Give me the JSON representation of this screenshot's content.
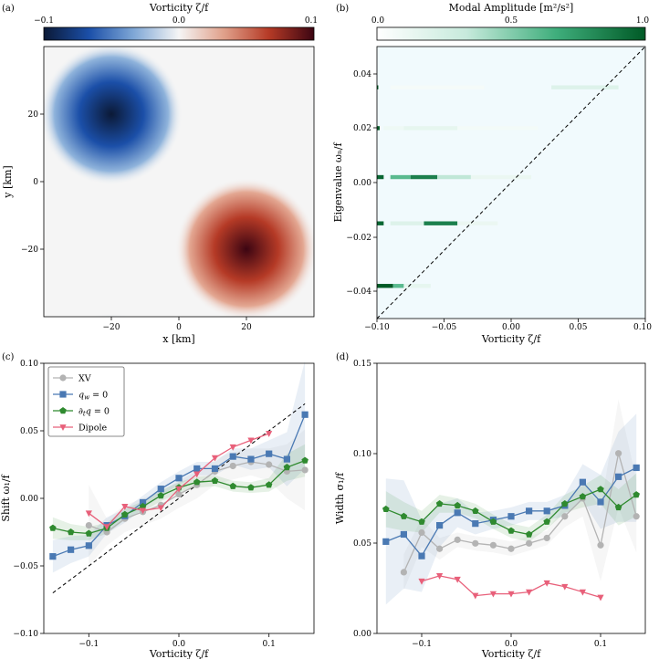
{
  "colors": {
    "xv": "#b3b3b3",
    "qw0": "#4a79b3",
    "dtq0": "#2f8a2f",
    "dipole": "#e8607a",
    "identity_line": "#000000",
    "vorticity_cmap": [
      "#0b1936",
      "#1b4fa8",
      "#7fa7d6",
      "#f5f5f5",
      "#e0a08a",
      "#b53a26",
      "#3c0512"
    ],
    "amplitude_cmap": [
      "#ffffff",
      "#c7eadc",
      "#3fae7c",
      "#005a26"
    ]
  },
  "panels": {
    "a": {
      "tag": "(a)",
      "colorbar_title": "Vorticity ζ/f",
      "colorbar_ticks": [
        "−0.1",
        "0.0",
        "0.1"
      ],
      "xlabel": "x [km]",
      "ylabel": "y [km]",
      "xticks": [
        "−20",
        "0",
        "20"
      ],
      "yticks": [
        "20",
        "0",
        "−20"
      ]
    },
    "b": {
      "tag": "(b)",
      "colorbar_title": "Modal Amplitude [m²/s²]",
      "colorbar_ticks": [
        "0.0",
        "0.5",
        "1.0"
      ],
      "xlabel": "Vorticity ζ/f",
      "ylabel": "Eigenvalue ωₙ/f",
      "xticks": [
        "−0.10",
        "−0.05",
        "0.00",
        "0.05",
        "0.10"
      ],
      "yticks": [
        "0.04",
        "0.02",
        "0.00",
        "−0.02",
        "−0.04"
      ]
    },
    "c": {
      "tag": "(c)",
      "xlabel": "Vorticity ζ/f",
      "ylabel": "Shift ω₁/f",
      "xticks": [
        "−0.1",
        "0.0",
        "0.1"
      ],
      "yticks": [
        "0.10",
        "0.05",
        "0.00",
        "−0.05",
        "−0.10"
      ]
    },
    "d": {
      "tag": "(d)",
      "xlabel": "Vorticity ζ/f",
      "ylabel": "Width σ₁/f",
      "xticks": [
        "−0.1",
        "0.0",
        "0.1"
      ],
      "yticks": [
        "0.15",
        "0.10",
        "0.05",
        "0.00"
      ]
    }
  },
  "chart_data": [
    {
      "panel": "a",
      "type": "heatmap",
      "field": "vorticity",
      "xlim": [
        -40,
        40
      ],
      "ylim": [
        -40,
        40
      ],
      "clim": [
        -0.1,
        0.1
      ],
      "centers": [
        {
          "x": -20,
          "y": 20,
          "value": -0.1
        },
        {
          "x": 20,
          "y": -20,
          "value": 0.1
        }
      ]
    },
    {
      "panel": "b",
      "type": "heatmap",
      "xlim": [
        -0.1,
        0.1
      ],
      "ylim": [
        -0.05,
        0.05
      ],
      "clim": [
        0,
        1
      ],
      "identity_line": true,
      "bands": [
        {
          "eigenvalue": 0.035,
          "segments": [
            [
              -0.1,
              -0.099,
              1.0
            ],
            [
              -0.09,
              -0.02,
              0.06
            ],
            [
              0.03,
              0.08,
              0.2
            ]
          ]
        },
        {
          "eigenvalue": 0.02,
          "segments": [
            [
              -0.1,
              -0.098,
              1.0
            ],
            [
              -0.095,
              -0.08,
              0.1
            ],
            [
              -0.08,
              -0.04,
              0.15
            ],
            [
              -0.04,
              0.02,
              0.07
            ]
          ]
        },
        {
          "eigenvalue": 0.002,
          "segments": [
            [
              -0.1,
              -0.095,
              0.95
            ],
            [
              -0.09,
              -0.075,
              0.6
            ],
            [
              -0.075,
              -0.055,
              0.85
            ],
            [
              -0.055,
              -0.03,
              0.35
            ],
            [
              -0.03,
              0.015,
              0.12
            ]
          ]
        },
        {
          "eigenvalue": -0.015,
          "segments": [
            [
              -0.1,
              -0.095,
              0.95
            ],
            [
              -0.09,
              -0.065,
              0.2
            ],
            [
              -0.065,
              -0.04,
              0.85
            ],
            [
              -0.04,
              -0.01,
              0.12
            ]
          ]
        },
        {
          "eigenvalue": -0.038,
          "segments": [
            [
              -0.1,
              -0.088,
              1.0
            ],
            [
              -0.088,
              -0.08,
              0.6
            ],
            [
              -0.08,
              -0.06,
              0.15
            ]
          ]
        }
      ]
    },
    {
      "panel": "c",
      "type": "line",
      "xlim": [
        -0.15,
        0.15
      ],
      "ylim": [
        -0.1,
        0.1
      ],
      "identity_line": {
        "x": [
          -0.14,
          0.14
        ],
        "y": [
          -0.07,
          0.07
        ]
      },
      "series": [
        {
          "name": "XV",
          "marker": "circle",
          "x": [
            -0.1,
            -0.08,
            -0.06,
            -0.04,
            -0.02,
            0.0,
            0.02,
            0.04,
            0.06,
            0.08,
            0.1,
            0.12,
            0.14
          ],
          "y": [
            -0.02,
            -0.025,
            -0.015,
            -0.01,
            -0.005,
            0.003,
            0.01,
            0.02,
            0.024,
            0.027,
            0.025,
            0.02,
            0.021
          ],
          "band": [
            0.03,
            0.01,
            0.01,
            0.01,
            0.01,
            0.01,
            0.01,
            0.01,
            0.01,
            0.01,
            0.012,
            0.02,
            0.03
          ]
        },
        {
          "name": "q_w = 0",
          "marker": "square",
          "x": [
            -0.14,
            -0.12,
            -0.1,
            -0.08,
            -0.06,
            -0.04,
            -0.02,
            0.0,
            0.02,
            0.04,
            0.06,
            0.08,
            0.1,
            0.12,
            0.14
          ],
          "y": [
            -0.043,
            -0.038,
            -0.035,
            -0.02,
            -0.013,
            -0.003,
            0.007,
            0.015,
            0.022,
            0.022,
            0.031,
            0.029,
            0.033,
            0.029,
            0.062
          ],
          "band": [
            0.012,
            0.01,
            0.008,
            0.006,
            0.005,
            0.005,
            0.005,
            0.005,
            0.005,
            0.005,
            0.006,
            0.008,
            0.01,
            0.02,
            0.04
          ]
        },
        {
          "name": "∂_t q = 0",
          "marker": "pentagon",
          "x": [
            -0.14,
            -0.12,
            -0.1,
            -0.08,
            -0.06,
            -0.04,
            -0.02,
            0.0,
            0.02,
            0.04,
            0.06,
            0.08,
            0.1,
            0.12,
            0.14
          ],
          "y": [
            -0.022,
            -0.025,
            -0.026,
            -0.022,
            -0.012,
            -0.006,
            0.002,
            0.008,
            0.012,
            0.013,
            0.009,
            0.008,
            0.01,
            0.023,
            0.028
          ],
          "band": [
            0.008,
            0.006,
            0.005,
            0.004,
            0.004,
            0.004,
            0.004,
            0.004,
            0.004,
            0.004,
            0.004,
            0.004,
            0.005,
            0.01,
            0.012
          ]
        },
        {
          "name": "Dipole",
          "marker": "triangle-down",
          "x": [
            -0.1,
            -0.08,
            -0.06,
            -0.04,
            -0.02,
            0.0,
            0.02,
            0.04,
            0.06,
            0.08,
            0.1
          ],
          "y": [
            -0.011,
            -0.021,
            -0.006,
            -0.009,
            -0.007,
            0.007,
            0.018,
            0.03,
            0.038,
            0.043,
            0.048
          ]
        }
      ]
    },
    {
      "panel": "d",
      "type": "line",
      "xlim": [
        -0.15,
        0.15
      ],
      "ylim": [
        0.0,
        0.15
      ],
      "series": [
        {
          "name": "XV",
          "marker": "circle",
          "x": [
            -0.12,
            -0.1,
            -0.08,
            -0.06,
            -0.04,
            -0.02,
            0.0,
            0.02,
            0.04,
            0.06,
            0.08,
            0.1,
            0.12,
            0.14
          ],
          "y": [
            0.034,
            0.056,
            0.047,
            0.052,
            0.05,
            0.049,
            0.047,
            0.05,
            0.053,
            0.065,
            0.075,
            0.049,
            0.1,
            0.065
          ],
          "band": [
            0.01,
            0.008,
            0.006,
            0.004,
            0.004,
            0.004,
            0.004,
            0.004,
            0.004,
            0.006,
            0.01,
            0.02,
            0.03,
            0.02
          ]
        },
        {
          "name": "q_w = 0",
          "marker": "square",
          "x": [
            -0.14,
            -0.12,
            -0.1,
            -0.08,
            -0.06,
            -0.04,
            -0.02,
            0.0,
            0.02,
            0.04,
            0.06,
            0.08,
            0.1,
            0.12,
            0.14
          ],
          "y": [
            0.051,
            0.055,
            0.043,
            0.06,
            0.067,
            0.061,
            0.063,
            0.065,
            0.068,
            0.068,
            0.071,
            0.084,
            0.073,
            0.087,
            0.092
          ],
          "band": [
            0.035,
            0.03,
            0.02,
            0.012,
            0.008,
            0.006,
            0.005,
            0.005,
            0.005,
            0.005,
            0.006,
            0.01,
            0.015,
            0.025,
            0.03
          ]
        },
        {
          "name": "∂_t q = 0",
          "marker": "pentagon",
          "x": [
            -0.14,
            -0.12,
            -0.1,
            -0.08,
            -0.06,
            -0.04,
            -0.02,
            0.0,
            0.02,
            0.04,
            0.06,
            0.08,
            0.1,
            0.12,
            0.14
          ],
          "y": [
            0.069,
            0.065,
            0.062,
            0.072,
            0.071,
            0.068,
            0.062,
            0.057,
            0.055,
            0.062,
            0.072,
            0.076,
            0.08,
            0.07,
            0.077
          ],
          "band": [
            0.01,
            0.008,
            0.006,
            0.005,
            0.004,
            0.004,
            0.004,
            0.004,
            0.004,
            0.004,
            0.005,
            0.006,
            0.008,
            0.01,
            0.012
          ]
        },
        {
          "name": "Dipole",
          "marker": "triangle-down",
          "x": [
            -0.1,
            -0.08,
            -0.06,
            -0.04,
            -0.02,
            0.0,
            0.02,
            0.04,
            0.06,
            0.08,
            0.1
          ],
          "y": [
            0.029,
            0.032,
            0.03,
            0.021,
            0.022,
            0.022,
            0.023,
            0.028,
            0.026,
            0.023,
            0.02
          ]
        }
      ]
    }
  ]
}
